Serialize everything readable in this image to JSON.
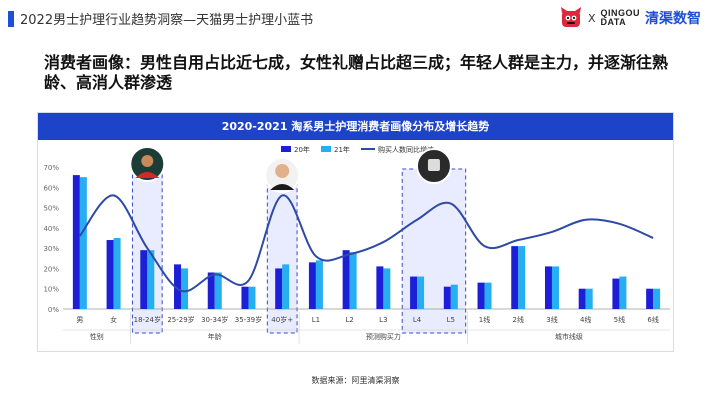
{
  "header": {
    "title": "2022男士护理行业趋势洞察—天猫男士护理小蓝书",
    "logo_x": "X",
    "logo_line1": "QINGOU",
    "logo_line2": "DATA",
    "logo_cn": "清渠数智"
  },
  "headline": "消费者画像：男性自用占比近七成，女性礼赠占比超三成；年轻人群是主力，并逐渐往熟龄、高消人群渗透",
  "source": "数据来源：阿里清渠洞察",
  "colors": {
    "accent": "#1f4fd8",
    "bar20": "#1c1fd6",
    "bar21": "#27aef0",
    "line": "#2e4aa6",
    "highlight": "#e9ecff",
    "highlight_border": "#3b4bc4"
  },
  "chart_data": {
    "type": "bar",
    "title": "2020-2021 淘系男士护理消费者画像分布及增长趋势",
    "categories": [
      "男",
      "女",
      "18-24岁",
      "25-29岁",
      "30-34岁",
      "35-39岁",
      "40岁+",
      "L1",
      "L2",
      "L3",
      "L4",
      "L5",
      "1线",
      "2线",
      "3线",
      "4线",
      "5线",
      "6线"
    ],
    "groups": [
      {
        "label": "性别",
        "from": 0,
        "to": 1
      },
      {
        "label": "年龄",
        "from": 2,
        "to": 6
      },
      {
        "label": "预测购买力",
        "from": 7,
        "to": 11
      },
      {
        "label": "城市线级",
        "from": 12,
        "to": 17
      }
    ],
    "series": [
      {
        "name": "20年",
        "values": [
          66,
          34,
          29,
          22,
          18,
          11,
          20,
          23,
          29,
          21,
          16,
          11,
          13,
          31,
          21,
          10,
          15,
          10
        ]
      },
      {
        "name": "21年",
        "values": [
          65,
          35,
          29,
          20,
          18,
          11,
          22,
          24,
          28,
          20,
          16,
          12,
          13,
          31,
          21,
          10,
          16,
          10
        ]
      }
    ],
    "line_series": {
      "name": "购买人数同比增速",
      "values": [
        36,
        56,
        30,
        9,
        17,
        14,
        56,
        26,
        27,
        33,
        44,
        52,
        31,
        34,
        38,
        44,
        42,
        35
      ]
    },
    "highlighted": [
      2,
      6,
      10,
      11
    ],
    "yticks": [
      "0%",
      "10%",
      "20%",
      "30%",
      "40%",
      "50%",
      "60%",
      "70%"
    ],
    "ylim": [
      0,
      70
    ],
    "legend_position": "top-center"
  }
}
